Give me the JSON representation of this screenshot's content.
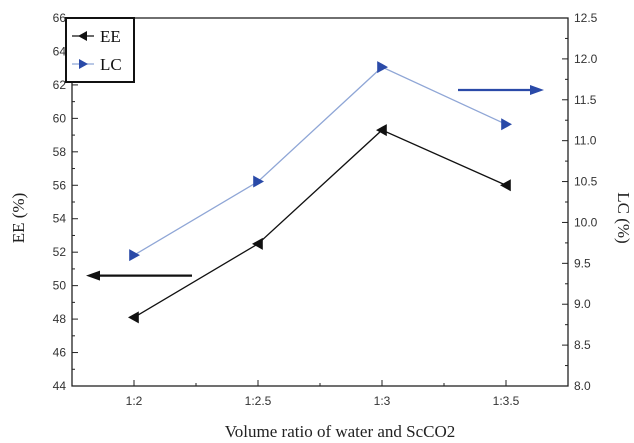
{
  "chart_data": {
    "type": "line",
    "xlabel": "Volume ratio of water and ScCO2",
    "ylabel_left": "EE (%)",
    "ylabel_right": "LC (%)",
    "categories": [
      "1:2",
      "1:2.5",
      "1:3",
      "1:3.5"
    ],
    "ylim_left": [
      44,
      66
    ],
    "yticks_left": [
      "44",
      "46",
      "48",
      "50",
      "52",
      "54",
      "56",
      "58",
      "60",
      "62",
      "64",
      "66"
    ],
    "ylim_right": [
      8.0,
      12.5
    ],
    "yticks_right": [
      "8.0",
      "8.5",
      "9.0",
      "9.5",
      "10.0",
      "10.5",
      "11.0",
      "11.5",
      "12.0",
      "12.5"
    ],
    "series": [
      {
        "name": "EE",
        "axis": "left",
        "values": [
          48.1,
          52.5,
          59.3,
          56.0
        ],
        "color": "#111111",
        "marker": "triangle-left"
      },
      {
        "name": "LC",
        "axis": "right",
        "values": [
          9.6,
          10.5,
          11.9,
          11.2
        ],
        "color": "#2a4aa8",
        "line_color": "#8fa6d6",
        "marker": "triangle-right"
      }
    ],
    "legend_position": "top-left",
    "grid": false,
    "annotations": [
      {
        "type": "arrow",
        "direction": "left",
        "points_to": "left axis (EE)",
        "color": "#111111"
      },
      {
        "type": "arrow",
        "direction": "right",
        "points_to": "right axis (LC)",
        "color": "#2a4aa8"
      }
    ]
  }
}
